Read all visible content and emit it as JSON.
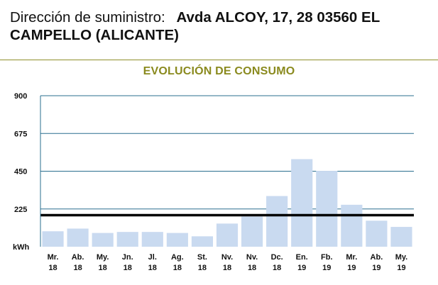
{
  "header": {
    "address_label": "Dirección de suministro:",
    "address_value": "Avda ALCOY, 17, 28  03560 EL CAMPELLO (ALICANTE)"
  },
  "colors": {
    "bar": "#c9daf0",
    "grid": "#2a6f8f",
    "reference_line": "#000000",
    "title": "#8a8a1e",
    "rule": "#8f8f2a"
  },
  "chart_data": {
    "type": "bar",
    "title": "EVOLUCIÓN DE CONSUMO",
    "ylabel": "kWh",
    "ylim": [
      0,
      900
    ],
    "yticks": [
      900,
      675,
      450,
      225
    ],
    "grid": true,
    "categories": [
      [
        "Mr.",
        "18"
      ],
      [
        "Ab.",
        "18"
      ],
      [
        "My.",
        "18"
      ],
      [
        "Jn.",
        "18"
      ],
      [
        "Jl.",
        "18"
      ],
      [
        "Ag.",
        "18"
      ],
      [
        "St.",
        "18"
      ],
      [
        "Nv.",
        "18"
      ],
      [
        "Nv.",
        "18"
      ],
      [
        "Dc.",
        "18"
      ],
      [
        "En.",
        "19"
      ],
      [
        "Fb.",
        "19"
      ],
      [
        "Mr.",
        "19"
      ],
      [
        "Ab.",
        "19"
      ],
      [
        "My.",
        "19"
      ]
    ],
    "values": [
      92,
      108,
      82,
      88,
      88,
      82,
      62,
      138,
      180,
      302,
      522,
      452,
      250,
      155,
      118
    ],
    "reference_value": 188
  }
}
